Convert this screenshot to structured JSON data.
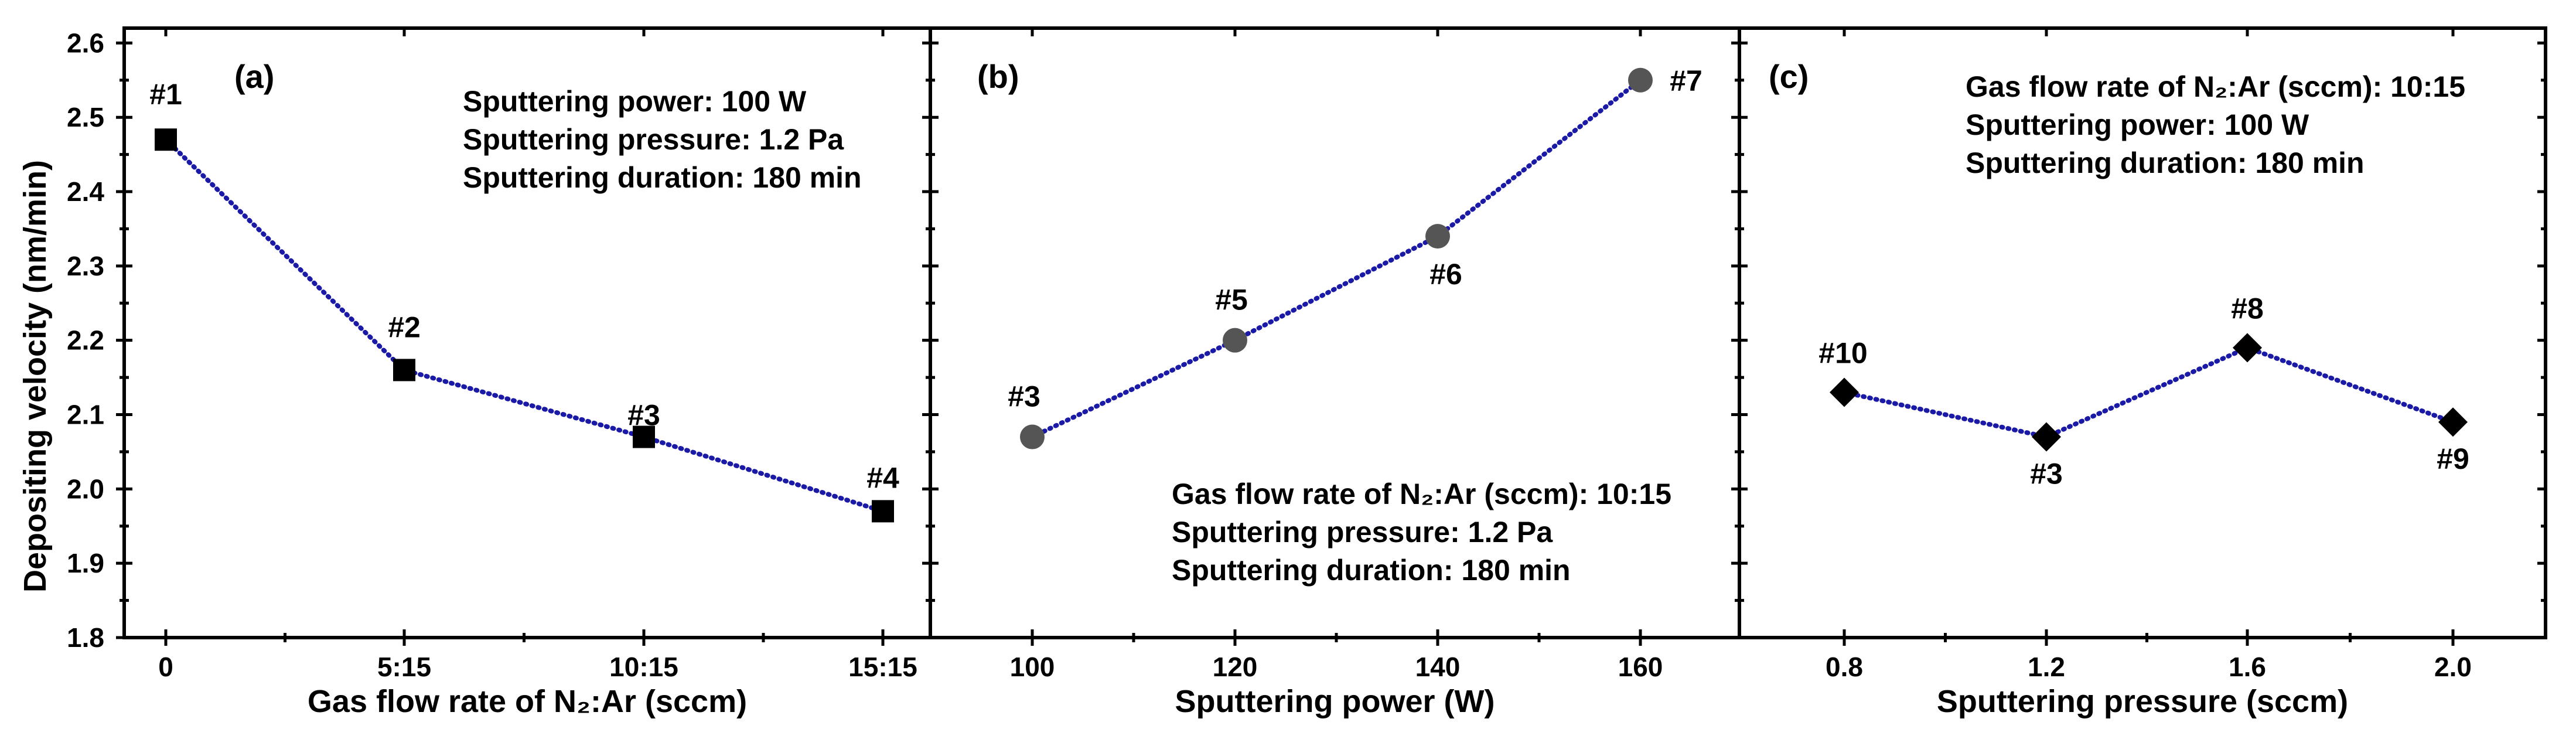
{
  "chart_data": [
    {
      "type": "line",
      "panel_label": "(a)",
      "xlabel": "Gas flow rate of N₂:Ar (sccm)",
      "ylabel": "Depositing velocity (nm/min)",
      "categories": [
        "0",
        "5:15",
        "10:15",
        "15:15"
      ],
      "values": [
        2.47,
        2.16,
        2.07,
        1.97
      ],
      "point_labels": [
        "#1",
        "#2",
        "#3",
        "#4"
      ],
      "marker": "square",
      "marker_color": "#000000",
      "line_color": "#1a1aa6",
      "ylim": [
        1.8,
        2.62
      ],
      "yticks": [
        "1.8",
        "1.9",
        "2.0",
        "2.1",
        "2.2",
        "2.3",
        "2.4",
        "2.5",
        "2.6"
      ],
      "annotations": [
        "Sputtering power: 100 W",
        "Sputtering pressure: 1.2 Pa",
        "Sputtering duration: 180 min"
      ]
    },
    {
      "type": "line",
      "panel_label": "(b)",
      "xlabel": "Sputtering power (W)",
      "categories": [
        "100",
        "120",
        "140",
        "160"
      ],
      "values": [
        2.07,
        2.2,
        2.34,
        2.55
      ],
      "point_labels": [
        "#3",
        "#5",
        "#6",
        "#7"
      ],
      "marker": "circle",
      "marker_color": "#555555",
      "line_color": "#1a1aa6",
      "ylim": [
        1.8,
        2.62
      ],
      "annotations": [
        "Gas flow rate of N₂:Ar (sccm): 10:15",
        "Sputtering pressure: 1.2 Pa",
        "Sputtering duration: 180 min"
      ]
    },
    {
      "type": "line",
      "panel_label": "(c)",
      "xlabel": "Sputtering pressure (sccm)",
      "categories": [
        "0.8",
        "1.2",
        "1.6",
        "2.0"
      ],
      "values": [
        2.13,
        2.07,
        2.19,
        2.09
      ],
      "point_labels": [
        "#10",
        "#3",
        "#8",
        "#9"
      ],
      "marker": "diamond",
      "marker_color": "#000000",
      "line_color": "#1a1aa6",
      "ylim": [
        1.8,
        2.62
      ],
      "annotations": [
        "Gas flow rate of N₂:Ar (sccm): 10:15",
        "Sputtering power: 100 W",
        "Sputtering duration: 180 min"
      ]
    }
  ]
}
